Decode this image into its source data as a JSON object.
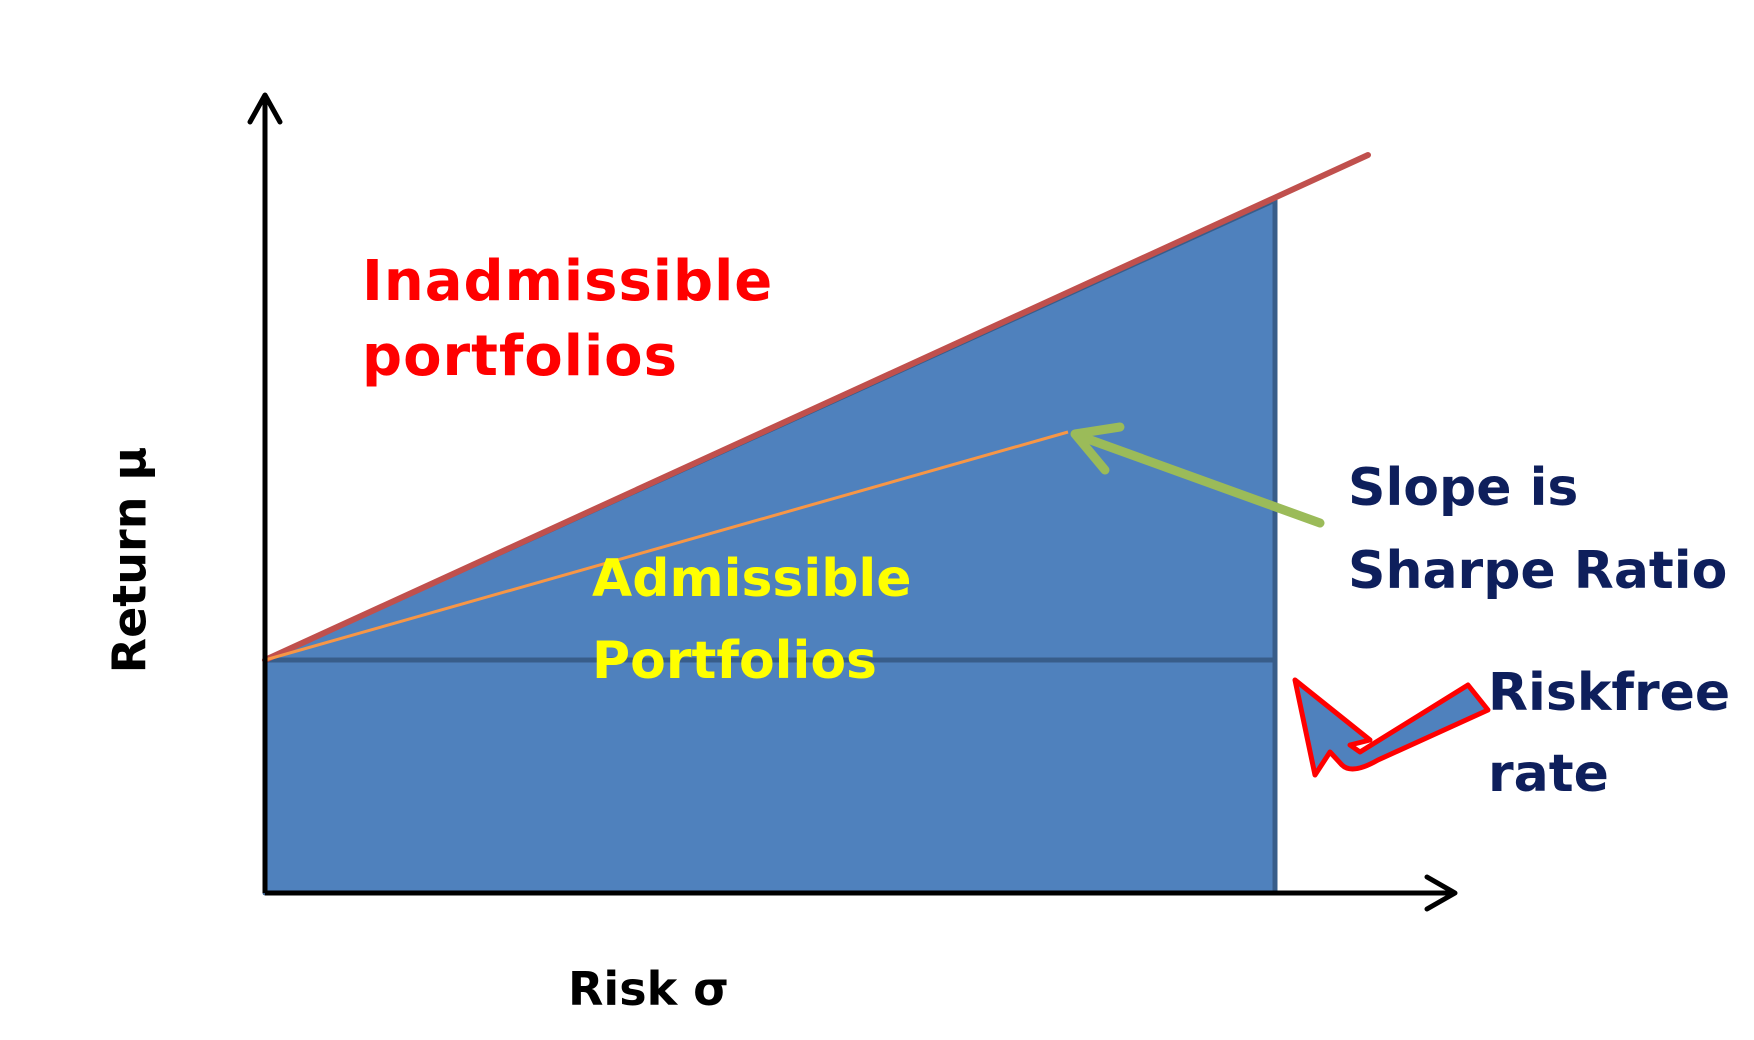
{
  "regions": {
    "inadmissible": [
      "Inadmissible",
      "portfolios"
    ],
    "admissible": [
      "Admissible",
      "Portfolios"
    ]
  },
  "annotations": {
    "slope": [
      "Slope is",
      "Sharpe Ratio"
    ],
    "riskfree": [
      "Riskfree",
      "rate"
    ]
  },
  "axes": {
    "x_label": "Risk σ",
    "y_label": "Return μ"
  },
  "colors": {
    "admissible_fill": "#4f81bd",
    "fill_border": "#385d8a",
    "frontier_line": "#c0504d",
    "sharpe_line": "#f79646",
    "slope_arrow": "#9bbb59",
    "riskfree_arrow_fill": "#4f81bd",
    "riskfree_arrow_outline": "#ff0000",
    "inadmissible_text": "#ff0000",
    "admissible_text": "#ffff00",
    "annotation_text": "#0e1f5c"
  }
}
